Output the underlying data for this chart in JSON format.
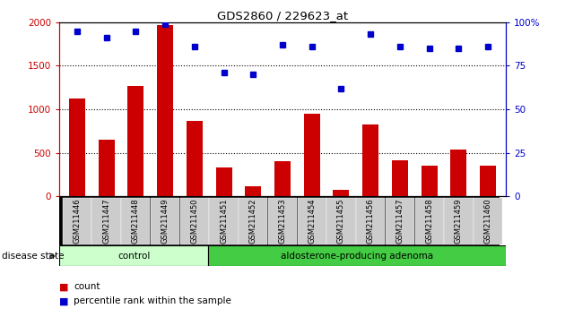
{
  "title": "GDS2860 / 229623_at",
  "samples": [
    "GSM211446",
    "GSM211447",
    "GSM211448",
    "GSM211449",
    "GSM211450",
    "GSM211451",
    "GSM211452",
    "GSM211453",
    "GSM211454",
    "GSM211455",
    "GSM211456",
    "GSM211457",
    "GSM211458",
    "GSM211459",
    "GSM211460"
  ],
  "counts": [
    1120,
    650,
    1270,
    1970,
    870,
    330,
    120,
    410,
    950,
    80,
    830,
    420,
    350,
    540,
    350
  ],
  "pct": [
    95,
    91,
    95,
    99,
    86,
    71,
    70,
    87,
    86,
    62,
    93,
    86,
    85,
    85,
    86
  ],
  "control_count": 5,
  "adenoma_count": 10,
  "bar_color": "#cc0000",
  "dot_color": "#0000cc",
  "control_bg": "#ccffcc",
  "adenoma_bg": "#44cc44",
  "label_bg": "#cccccc",
  "y_left_color": "#cc0000",
  "y_right_color": "#0000cc",
  "ylim_left": [
    0,
    2000
  ],
  "ylim_right": [
    0,
    100
  ],
  "yticks_left": [
    0,
    500,
    1000,
    1500,
    2000
  ],
  "ytick_labels_left": [
    "0",
    "500",
    "1000",
    "1500",
    "2000"
  ],
  "yticks_right": [
    0,
    25,
    50,
    75,
    100
  ],
  "ytick_labels_right": [
    "0",
    "25",
    "50",
    "75",
    "100%"
  ]
}
